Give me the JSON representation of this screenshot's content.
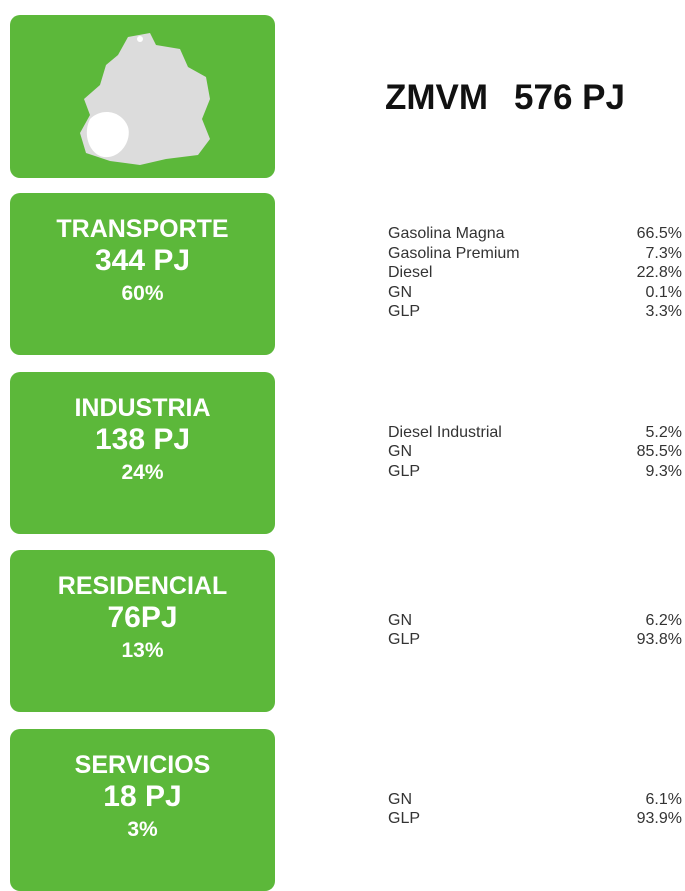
{
  "header": {
    "title": "ZMVM",
    "total": "576 PJ"
  },
  "sectors": [
    {
      "name": "TRANSPORTE",
      "energy": "344 PJ",
      "share": "60%",
      "fuels": [
        {
          "name": "Gasolina Magna",
          "share": "66.5%"
        },
        {
          "name": "Gasolina Premium",
          "share": "7.3%"
        },
        {
          "name": "Diesel",
          "share": "22.8%"
        },
        {
          "name": "GN",
          "share": "0.1%"
        },
        {
          "name": "GLP",
          "share": "3.3%"
        }
      ]
    },
    {
      "name": "INDUSTRIA",
      "energy": "138 PJ",
      "share": "24%",
      "fuels": [
        {
          "name": "Diesel Industrial",
          "share": "5.2%"
        },
        {
          "name": "GN",
          "share": "85.5%"
        },
        {
          "name": "GLP",
          "share": "9.3%"
        }
      ]
    },
    {
      "name": "RESIDENCIAL",
      "energy": "76PJ",
      "share": "13%",
      "fuels": [
        {
          "name": "GN",
          "share": "6.2%"
        },
        {
          "name": "GLP",
          "share": "93.8%"
        }
      ]
    },
    {
      "name": "SERVICIOS",
      "energy": "18 PJ",
      "share": "3%",
      "fuels": [
        {
          "name": "GN",
          "share": "6.1%"
        },
        {
          "name": "GLP",
          "share": "93.9%"
        }
      ]
    }
  ]
}
